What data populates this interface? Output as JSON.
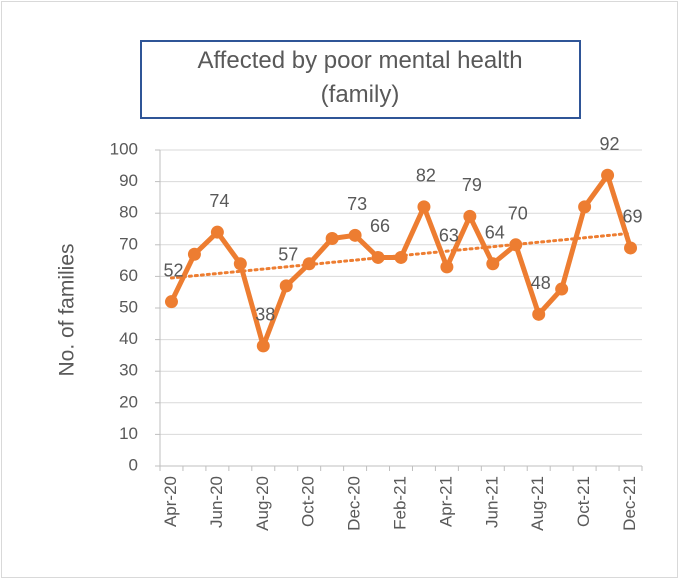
{
  "chart_data": {
    "type": "line",
    "title": "Affected by poor mental health (family)",
    "y_label": "No. of families",
    "categories": [
      "Apr-20",
      null,
      "Jun-20",
      null,
      "Aug-20",
      null,
      "Oct-20",
      null,
      "Dec-20",
      null,
      "Feb-21",
      null,
      "Apr-21",
      null,
      "Jun-21",
      null,
      "Aug-21",
      null,
      "Oct-21",
      null,
      "Dec-21"
    ],
    "series": [
      {
        "name": "Affected by poor mental health (family)",
        "color": "#ed7d31",
        "values": [
          52,
          67,
          74,
          64,
          38,
          57,
          64,
          72,
          73,
          66,
          66,
          82,
          63,
          79,
          64,
          70,
          48,
          56,
          82,
          92,
          69
        ],
        "value_labels": [
          "52",
          null,
          "74",
          null,
          "38",
          "57",
          null,
          null,
          "73",
          "66",
          null,
          "82",
          "63",
          "79",
          "64",
          "70",
          "48",
          null,
          null,
          "92",
          "69"
        ]
      }
    ],
    "trendline": "linear",
    "ylim": [
      0,
      100
    ],
    "yticks": [
      0,
      10,
      20,
      30,
      40,
      50,
      60,
      70,
      80,
      90,
      100
    ],
    "grid": true
  }
}
